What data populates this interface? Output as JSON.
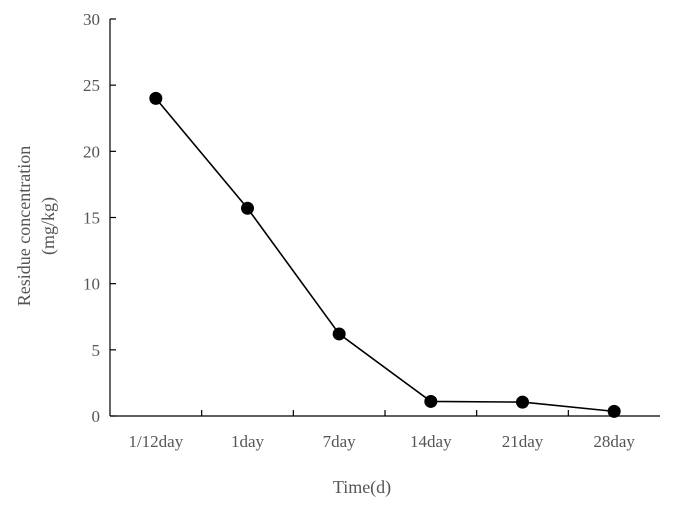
{
  "chart_data": {
    "type": "line",
    "categories": [
      "1/12day",
      "1day",
      "7day",
      "14day",
      "21day",
      "28day"
    ],
    "series": [
      {
        "values": [
          24.0,
          15.7,
          6.2,
          1.1,
          1.05,
          0.35
        ]
      }
    ],
    "xlabel": "Time(d)",
    "ylabel_line1": "Residue concentration",
    "ylabel_line2": "(mg/kg)",
    "ylim": [
      0,
      30
    ],
    "yticks": [
      "0",
      "5",
      "10",
      "15",
      "20",
      "25",
      "30"
    ],
    "grid": false,
    "legend": "none",
    "colors": {
      "line": "#000000",
      "marker": "#000000",
      "text": "#555555"
    }
  }
}
